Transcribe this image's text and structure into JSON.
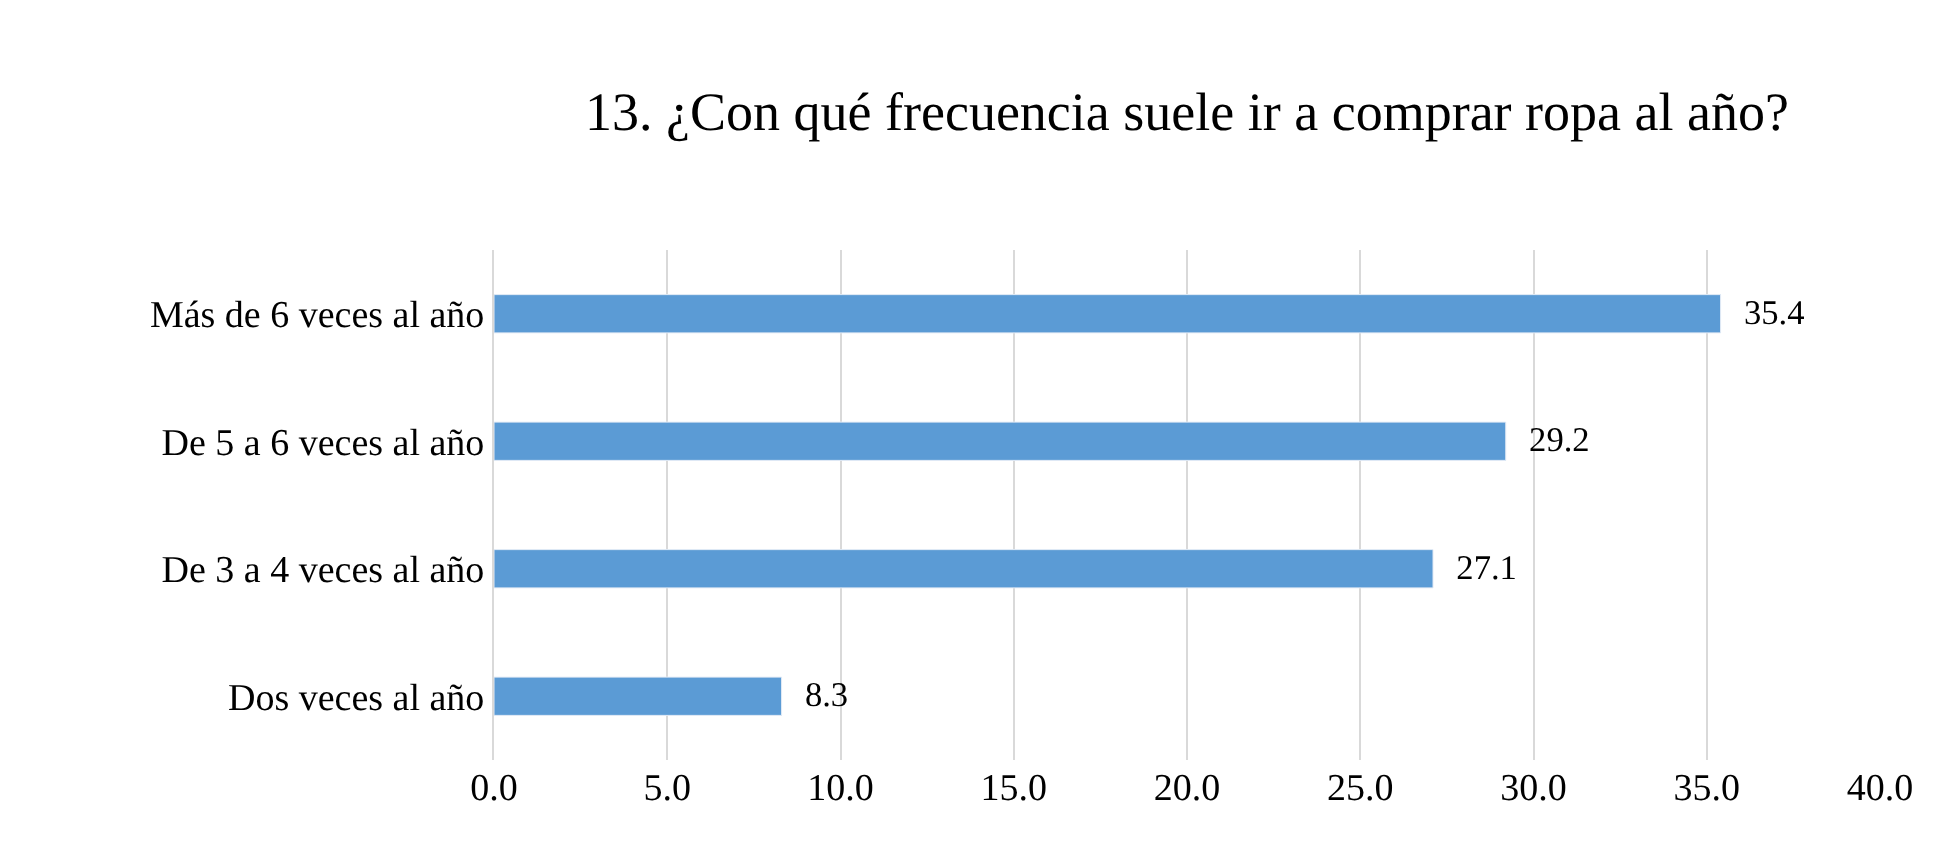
{
  "chart_data": {
    "type": "bar",
    "orientation": "horizontal",
    "title": "13. ¿Con qué frecuencia suele ir a comprar ropa al año?",
    "categories": [
      "Más de 6 veces al año",
      "De 5 a 6 veces al año",
      "De 3 a 4 veces al año",
      "Dos veces al año"
    ],
    "values": [
      35.4,
      29.2,
      27.1,
      8.3
    ],
    "color": "#5b9bd5",
    "xlim": [
      0,
      40
    ],
    "xticks": [
      {
        "value": 0,
        "label": "0.0"
      },
      {
        "value": 5,
        "label": "5.0"
      },
      {
        "value": 10,
        "label": "10.0"
      },
      {
        "value": 15,
        "label": "15.0"
      },
      {
        "value": 20,
        "label": "20.0"
      },
      {
        "value": 25,
        "label": "25.0"
      },
      {
        "value": 30,
        "label": "30.0"
      },
      {
        "value": 35,
        "label": "35.0"
      },
      {
        "value": 40,
        "label": "40.0"
      }
    ],
    "data_labels": true,
    "grid": "x"
  }
}
